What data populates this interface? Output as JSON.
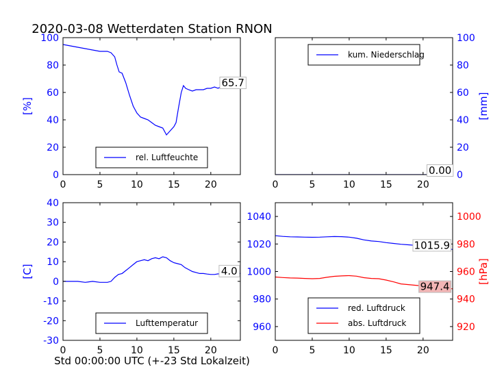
{
  "title": "2020-03-08 Wetterdaten Station RNON",
  "xlabel": "Std 00:00:00 UTC (+-23 Std Lokalzeit)",
  "colors": {
    "blue": "#0000ff",
    "red": "#ff0000",
    "axis": "#000000",
    "valuebox_pressure_bg": "#f2b5b5"
  },
  "chart_data": [
    {
      "type": "line",
      "title": "",
      "ylabel_left": "[%]",
      "ylabel_right": "",
      "xlim": [
        0,
        24
      ],
      "ylim": [
        0,
        100
      ],
      "xticks": [
        0,
        5,
        10,
        15,
        20
      ],
      "yticks_left": [
        0,
        20,
        40,
        60,
        80,
        100
      ],
      "yticks_right": [],
      "legend_position": "bottom-center",
      "value_box": {
        "text": "65.7",
        "x": 23,
        "y": 67
      },
      "series": [
        {
          "name": "rel. Luftfeuchte",
          "color": "#0000ff",
          "axis": "left",
          "x": [
            0,
            1,
            2,
            3,
            4,
            5,
            6,
            6.5,
            7,
            7.3,
            7.6,
            8,
            8.5,
            9,
            9.5,
            10,
            10.5,
            11,
            11.5,
            12,
            12.5,
            13,
            13.5,
            14,
            14.5,
            15,
            15.3,
            15.6,
            16,
            16.3,
            16.6,
            17,
            17.5,
            18,
            18.5,
            19,
            19.5,
            20,
            20.5,
            21,
            21.5,
            22,
            22.5,
            23,
            23.5
          ],
          "y": [
            95,
            94,
            93,
            92,
            91,
            90,
            90,
            89,
            86,
            80,
            75,
            74,
            67,
            58,
            50,
            45,
            42,
            41,
            40,
            38,
            36,
            35,
            34,
            29,
            32,
            35,
            38,
            48,
            60,
            65,
            63,
            62,
            61,
            62,
            62,
            62,
            63,
            63,
            64,
            63,
            65,
            66,
            68,
            69,
            66
          ]
        }
      ]
    },
    {
      "type": "line",
      "title": "",
      "ylabel_left": "",
      "ylabel_right": "[mm]",
      "xlim": [
        0,
        24
      ],
      "ylim": [
        0,
        100
      ],
      "xticks": [
        0,
        5,
        10,
        15,
        20
      ],
      "yticks_left": [],
      "yticks_right": [
        0,
        20,
        40,
        60,
        80,
        100
      ],
      "legend_position": "top-center",
      "value_box": {
        "text": "0.00",
        "x": 22.3,
        "y": 3
      },
      "series": [
        {
          "name": "kum. Niederschlag",
          "color": "#0000ff",
          "axis": "right",
          "x": [
            0,
            24
          ],
          "y": [
            0,
            0
          ]
        }
      ]
    },
    {
      "type": "line",
      "title": "",
      "ylabel_left": "[C]",
      "ylabel_right": "",
      "xlim": [
        0,
        24
      ],
      "ylim": [
        -30,
        40
      ],
      "xticks": [
        0,
        5,
        10,
        15,
        20
      ],
      "yticks_left": [
        -30,
        -20,
        -10,
        0,
        10,
        20,
        30,
        40
      ],
      "yticks_right": [],
      "legend_position": "bottom-center",
      "value_box": {
        "text": "4.0",
        "x": 22.5,
        "y": 5.2
      },
      "series": [
        {
          "name": "Lufttemperatur",
          "color": "#0000ff",
          "axis": "left",
          "x": [
            0,
            1,
            2,
            3,
            4,
            5,
            6,
            6.5,
            7,
            7.5,
            8,
            8.5,
            9,
            9.5,
            10,
            10.5,
            11,
            11.5,
            12,
            12.5,
            13,
            13.5,
            14,
            14.5,
            15,
            15.5,
            16,
            16.5,
            17,
            17.5,
            18,
            18.5,
            19,
            19.5,
            20,
            20.5,
            21,
            21.5,
            22,
            23,
            24
          ],
          "y": [
            0,
            0,
            0,
            -0.5,
            0,
            -0.5,
            -0.5,
            0,
            2,
            3.5,
            4,
            5.5,
            7,
            8.5,
            10,
            10.5,
            11,
            10.5,
            11.5,
            12,
            11.5,
            12.5,
            12,
            10.5,
            9.5,
            9,
            8.5,
            7,
            6,
            5,
            4.5,
            4,
            4,
            3.7,
            3.5,
            3.5,
            3.8,
            3.5,
            4,
            4.2,
            4
          ]
        }
      ]
    },
    {
      "type": "line",
      "title": "",
      "ylabel_left": "",
      "ylabel_right": "[hPa]",
      "xlim": [
        0,
        24
      ],
      "ylim": [
        950,
        1050
      ],
      "ylim_right": [
        910,
        1010
      ],
      "xticks": [
        0,
        5,
        10,
        15,
        20
      ],
      "yticks_left": [
        960,
        980,
        1000,
        1020,
        1040
      ],
      "yticks_right": [
        920,
        940,
        960,
        980,
        1000
      ],
      "legend_position": "bottom-center",
      "value_box": {
        "text": "1015.9",
        "x": 21.2,
        "y": 1019
      },
      "value_box_2": {
        "text": "947.4",
        "x": 21.6,
        "y": 949
      },
      "series": [
        {
          "name": "red. Luftdruck",
          "color": "#0000ff",
          "axis": "left",
          "x": [
            0,
            1,
            2,
            3,
            4,
            5,
            6,
            7,
            8,
            9,
            10,
            11,
            12,
            13,
            14,
            15,
            16,
            17,
            18,
            19,
            20,
            21,
            22,
            23,
            24
          ],
          "y": [
            1026,
            1025.5,
            1025.2,
            1025.1,
            1025,
            1024.9,
            1025,
            1025.2,
            1025.4,
            1025.3,
            1025,
            1024.2,
            1023,
            1022.2,
            1021.8,
            1021,
            1020.4,
            1019.8,
            1019.4,
            1019,
            1018.6,
            1018.2,
            1017.6,
            1016.8,
            1016
          ]
        },
        {
          "name": "abs. Luftdruck",
          "color": "#ff0000",
          "axis": "right",
          "x": [
            0,
            1,
            2,
            3,
            4,
            5,
            6,
            7,
            8,
            9,
            10,
            11,
            12,
            13,
            14,
            15,
            16,
            17,
            18,
            19,
            20,
            21,
            22,
            23,
            24
          ],
          "y": [
            956,
            955.6,
            955.3,
            955.2,
            955,
            954.8,
            955,
            955.8,
            956.5,
            956.8,
            957,
            956.6,
            955.5,
            955,
            954.8,
            953.8,
            952.5,
            951,
            950.5,
            950,
            949.5,
            949,
            948.5,
            948,
            947.4
          ]
        }
      ]
    }
  ]
}
